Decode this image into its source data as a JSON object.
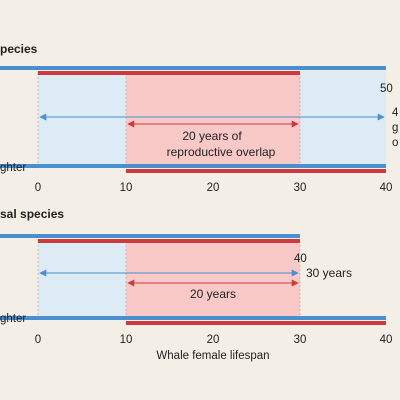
{
  "colors": {
    "background": "#f4efe6",
    "life_bar": "#4a90d0",
    "reproductive_bar": "#cc3a3e",
    "life_fill": "#dcebf4",
    "overlap_fill": "#f8c9c7",
    "gridline": "#d7a6a6"
  },
  "panel_a": {
    "title": "pecies",
    "mother_end_value": "50",
    "mother_side_label_lines": [
      "4",
      "g",
      "o"
    ],
    "overlap_label_lines": [
      "20 years of",
      "reproductive overlap"
    ],
    "daughter_label": "ghter",
    "ticks": [
      "0",
      "10",
      "20",
      "30",
      "40"
    ]
  },
  "panel_b": {
    "title": "sal species",
    "mother_end_value": "40",
    "side_label": "30 years",
    "overlap_label": "20 years",
    "daughter_label": "ghter",
    "ticks": [
      "0",
      "10",
      "20",
      "30",
      "40"
    ],
    "axis_label": "Whale female lifespan"
  }
}
